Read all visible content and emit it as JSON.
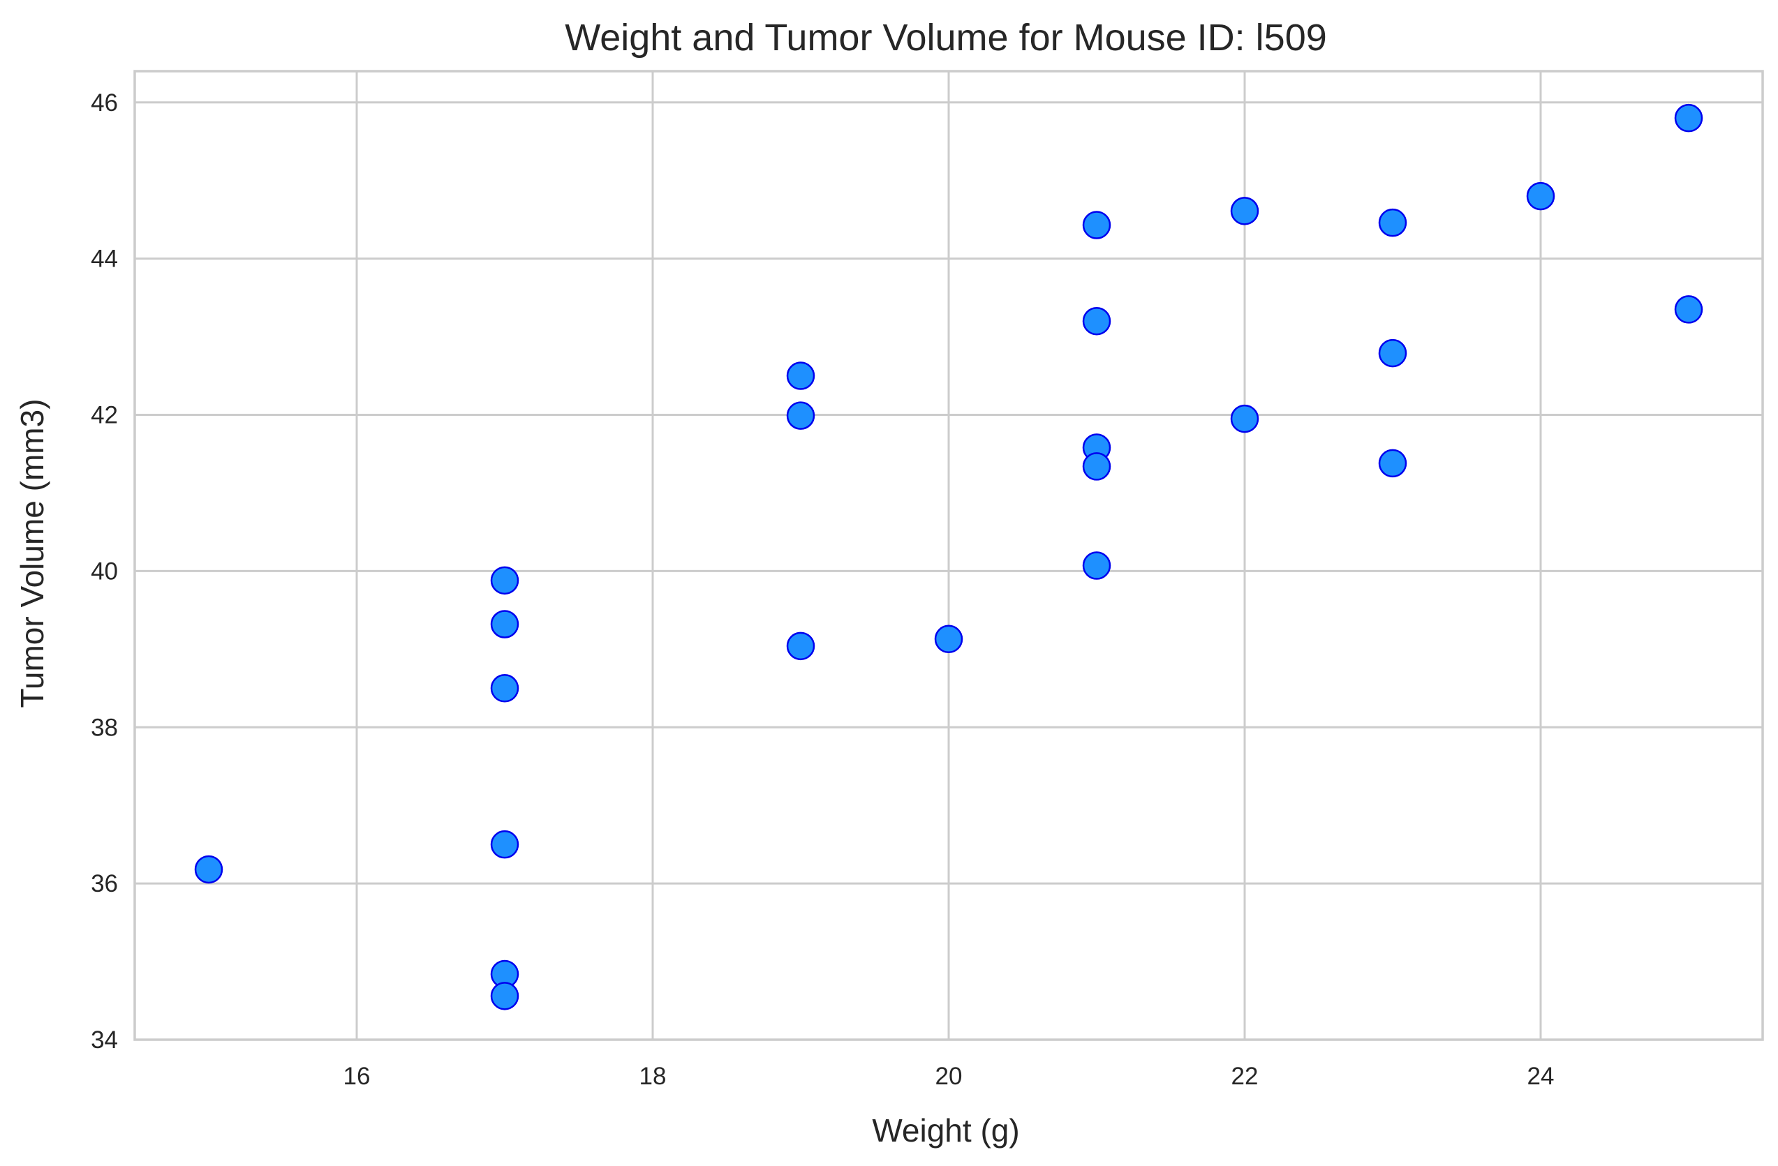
{
  "colors": {
    "marker_fill": "#1e90ff",
    "marker_edge": "#0000ee",
    "grid": "#cccccc",
    "spine": "#cccccc",
    "text": "#262626",
    "background": "#ffffff"
  },
  "chart_data": {
    "type": "scatter",
    "title": "Weight and Tumor Volume for Mouse ID: l509",
    "xlabel": "Weight (g)",
    "ylabel": "Tumor Volume (mm3)",
    "xlim": [
      14.5,
      25.5
    ],
    "ylim": [
      34,
      46.4
    ],
    "xticks": [
      16,
      18,
      20,
      22,
      24
    ],
    "yticks": [
      34,
      36,
      38,
      40,
      42,
      44,
      46
    ],
    "grid": true,
    "legend": "none",
    "points": [
      {
        "x": 15,
        "y": 36.18
      },
      {
        "x": 17,
        "y": 39.88
      },
      {
        "x": 17,
        "y": 39.32
      },
      {
        "x": 17,
        "y": 38.5
      },
      {
        "x": 17,
        "y": 36.5
      },
      {
        "x": 17,
        "y": 34.84
      },
      {
        "x": 17,
        "y": 34.56
      },
      {
        "x": 19,
        "y": 42.5
      },
      {
        "x": 19,
        "y": 41.99
      },
      {
        "x": 19,
        "y": 39.04
      },
      {
        "x": 20,
        "y": 39.13
      },
      {
        "x": 21,
        "y": 44.43
      },
      {
        "x": 21,
        "y": 43.2
      },
      {
        "x": 21,
        "y": 41.58
      },
      {
        "x": 21,
        "y": 41.34
      },
      {
        "x": 21,
        "y": 40.07
      },
      {
        "x": 22,
        "y": 44.61
      },
      {
        "x": 22,
        "y": 41.95
      },
      {
        "x": 23,
        "y": 44.46
      },
      {
        "x": 23,
        "y": 42.79
      },
      {
        "x": 23,
        "y": 41.38
      },
      {
        "x": 24,
        "y": 44.8
      },
      {
        "x": 25,
        "y": 45.8
      },
      {
        "x": 25,
        "y": 43.35
      }
    ]
  }
}
